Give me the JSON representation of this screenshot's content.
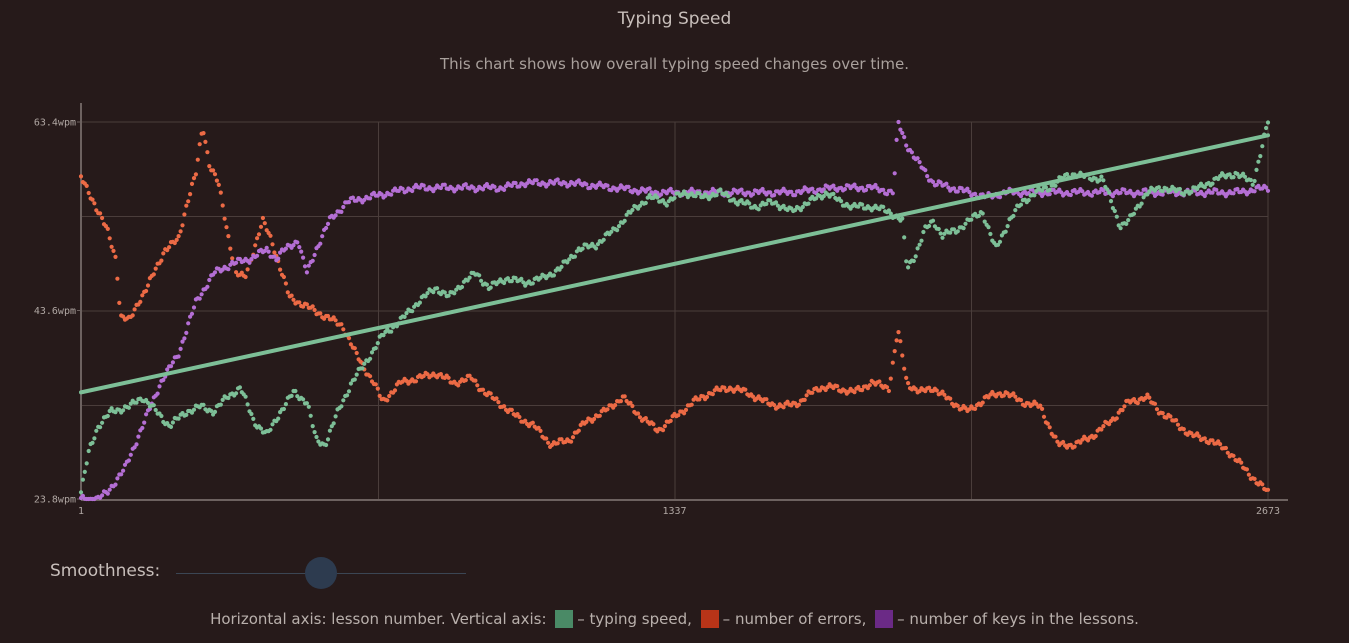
{
  "header": {
    "title": "Typing Speed",
    "subtitle": "This chart shows how overall typing speed changes over time."
  },
  "chart_data": {
    "type": "line",
    "title": "Typing Speed",
    "subtitle": "This chart shows how overall typing speed changes over time.",
    "xlabel": "lesson number",
    "ylabel": "",
    "x_ticks": [
      "1",
      "1337",
      "2673"
    ],
    "y_ticks": [
      "23.8wpm",
      "43.6wpm",
      "63.4wpm"
    ],
    "xlim": [
      1,
      2673
    ],
    "ylim": [
      23.8,
      63.4
    ],
    "grid": true,
    "legend": "bottom",
    "series": [
      {
        "name": "typing speed",
        "color": "#7dbf97",
        "style": "dots",
        "points": [
          [
            1,
            24.5
          ],
          [
            20,
            29.0
          ],
          [
            40,
            31.5
          ],
          [
            70,
            33.0
          ],
          [
            110,
            33.5
          ],
          [
            140,
            34.5
          ],
          [
            170,
            33.0
          ],
          [
            200,
            31.5
          ],
          [
            240,
            33.0
          ],
          [
            270,
            33.5
          ],
          [
            300,
            33.0
          ],
          [
            330,
            34.5
          ],
          [
            360,
            35.5
          ],
          [
            390,
            32.0
          ],
          [
            420,
            30.5
          ],
          [
            450,
            33.0
          ],
          [
            480,
            35.0
          ],
          [
            510,
            34.0
          ],
          [
            530,
            30.0
          ],
          [
            550,
            29.5
          ],
          [
            580,
            33.0
          ],
          [
            610,
            36.0
          ],
          [
            640,
            38.0
          ],
          [
            680,
            41.0
          ],
          [
            720,
            42.5
          ],
          [
            760,
            44.5
          ],
          [
            800,
            46.0
          ],
          [
            830,
            45.0
          ],
          [
            860,
            46.5
          ],
          [
            890,
            47.5
          ],
          [
            920,
            46.0
          ],
          [
            960,
            47.0
          ],
          [
            1000,
            46.5
          ],
          [
            1040,
            47.0
          ],
          [
            1080,
            48.0
          ],
          [
            1120,
            50.0
          ],
          [
            1160,
            50.5
          ],
          [
            1200,
            52.0
          ],
          [
            1240,
            54.0
          ],
          [
            1280,
            55.5
          ],
          [
            1320,
            55.0
          ],
          [
            1360,
            56.0
          ],
          [
            1400,
            55.5
          ],
          [
            1440,
            56.0
          ],
          [
            1480,
            55.0
          ],
          [
            1520,
            54.5
          ],
          [
            1560,
            55.0
          ],
          [
            1600,
            54.0
          ],
          [
            1640,
            55.0
          ],
          [
            1680,
            56.0
          ],
          [
            1710,
            55.0
          ],
          [
            1740,
            54.5
          ],
          [
            1780,
            54.5
          ],
          [
            1820,
            54.0
          ],
          [
            1850,
            53.0
          ],
          [
            1860,
            48.0
          ],
          [
            1880,
            49.5
          ],
          [
            1900,
            52.0
          ],
          [
            1920,
            53.0
          ],
          [
            1940,
            51.5
          ],
          [
            1970,
            52.0
          ],
          [
            2000,
            53.0
          ],
          [
            2030,
            54.0
          ],
          [
            2060,
            50.0
          ],
          [
            2090,
            53.0
          ],
          [
            2120,
            55.0
          ],
          [
            2150,
            56.0
          ],
          [
            2180,
            56.5
          ],
          [
            2210,
            57.5
          ],
          [
            2240,
            58.0
          ],
          [
            2270,
            57.5
          ],
          [
            2300,
            57.5
          ],
          [
            2320,
            55.0
          ],
          [
            2340,
            52.5
          ],
          [
            2360,
            53.0
          ],
          [
            2400,
            56.0
          ],
          [
            2440,
            56.5
          ],
          [
            2480,
            56.0
          ],
          [
            2520,
            56.5
          ],
          [
            2560,
            57.5
          ],
          [
            2600,
            58.0
          ],
          [
            2640,
            57.0
          ],
          [
            2673,
            63.4
          ]
        ]
      },
      {
        "name": "number of errors",
        "color": "#ec6a45",
        "style": "dots",
        "points": [
          [
            1,
            57.5
          ],
          [
            30,
            55.0
          ],
          [
            60,
            52.0
          ],
          [
            80,
            49.0
          ],
          [
            90,
            43.0
          ],
          [
            110,
            42.5
          ],
          [
            130,
            44.5
          ],
          [
            150,
            46.0
          ],
          [
            170,
            48.0
          ],
          [
            190,
            50.0
          ],
          [
            220,
            51.0
          ],
          [
            240,
            55.0
          ],
          [
            260,
            58.0
          ],
          [
            275,
            63.0
          ],
          [
            290,
            59.0
          ],
          [
            310,
            57.0
          ],
          [
            330,
            52.0
          ],
          [
            350,
            47.5
          ],
          [
            370,
            47.0
          ],
          [
            390,
            50.0
          ],
          [
            410,
            53.0
          ],
          [
            430,
            51.0
          ],
          [
            450,
            48.0
          ],
          [
            470,
            45.0
          ],
          [
            510,
            44.0
          ],
          [
            550,
            43.0
          ],
          [
            590,
            42.0
          ],
          [
            620,
            39.0
          ],
          [
            640,
            37.5
          ],
          [
            660,
            36.0
          ],
          [
            680,
            34.0
          ],
          [
            720,
            36.0
          ],
          [
            760,
            36.5
          ],
          [
            800,
            37.0
          ],
          [
            840,
            36.0
          ],
          [
            880,
            36.5
          ],
          [
            910,
            35.0
          ],
          [
            940,
            34.0
          ],
          [
            980,
            32.5
          ],
          [
            1020,
            31.5
          ],
          [
            1060,
            29.5
          ],
          [
            1100,
            30.0
          ],
          [
            1140,
            32.0
          ],
          [
            1180,
            33.0
          ],
          [
            1220,
            34.5
          ],
          [
            1260,
            32.5
          ],
          [
            1300,
            31.0
          ],
          [
            1340,
            32.5
          ],
          [
            1380,
            34.0
          ],
          [
            1420,
            35.0
          ],
          [
            1460,
            35.5
          ],
          [
            1500,
            35.0
          ],
          [
            1540,
            34.0
          ],
          [
            1580,
            33.5
          ],
          [
            1620,
            34.0
          ],
          [
            1660,
            35.5
          ],
          [
            1700,
            35.5
          ],
          [
            1740,
            35.0
          ],
          [
            1780,
            36.0
          ],
          [
            1820,
            35.5
          ],
          [
            1840,
            41.5
          ],
          [
            1860,
            36.0
          ],
          [
            1890,
            35.0
          ],
          [
            1920,
            35.5
          ],
          [
            1960,
            34.0
          ],
          [
            2000,
            33.0
          ],
          [
            2040,
            34.5
          ],
          [
            2080,
            35.0
          ],
          [
            2120,
            34.0
          ],
          [
            2160,
            33.5
          ],
          [
            2200,
            29.5
          ],
          [
            2240,
            29.5
          ],
          [
            2280,
            30.5
          ],
          [
            2320,
            32.0
          ],
          [
            2360,
            34.0
          ],
          [
            2400,
            34.5
          ],
          [
            2430,
            33.0
          ],
          [
            2460,
            32.0
          ],
          [
            2500,
            30.5
          ],
          [
            2540,
            30.0
          ],
          [
            2580,
            29.0
          ],
          [
            2620,
            27.0
          ],
          [
            2650,
            25.5
          ],
          [
            2673,
            24.5
          ]
        ]
      },
      {
        "name": "number of keys in the lessons",
        "color": "#b46ed4",
        "style": "dots",
        "points": [
          [
            1,
            23.8
          ],
          [
            40,
            23.8
          ],
          [
            60,
            24.5
          ],
          [
            100,
            27.0
          ],
          [
            140,
            31.5
          ],
          [
            180,
            36.0
          ],
          [
            220,
            39.0
          ],
          [
            260,
            44.5
          ],
          [
            300,
            47.5
          ],
          [
            340,
            48.5
          ],
          [
            380,
            49.0
          ],
          [
            420,
            50.0
          ],
          [
            440,
            49.0
          ],
          [
            460,
            50.0
          ],
          [
            490,
            51.0
          ],
          [
            500,
            49.0
          ],
          [
            510,
            47.5
          ],
          [
            530,
            50.0
          ],
          [
            560,
            53.0
          ],
          [
            600,
            55.0
          ],
          [
            650,
            55.5
          ],
          [
            700,
            56.0
          ],
          [
            750,
            56.5
          ],
          [
            800,
            56.5
          ],
          [
            850,
            56.5
          ],
          [
            900,
            56.5
          ],
          [
            950,
            56.5
          ],
          [
            1000,
            57.0
          ],
          [
            1100,
            57.0
          ],
          [
            1200,
            56.5
          ],
          [
            1300,
            56.0
          ],
          [
            1400,
            56.0
          ],
          [
            1500,
            56.0
          ],
          [
            1600,
            56.0
          ],
          [
            1700,
            56.5
          ],
          [
            1780,
            56.5
          ],
          [
            1830,
            56.0
          ],
          [
            1840,
            63.4
          ],
          [
            1860,
            61.0
          ],
          [
            1880,
            59.5
          ],
          [
            1920,
            57.0
          ],
          [
            1960,
            56.5
          ],
          [
            2000,
            56.0
          ],
          [
            2040,
            55.5
          ],
          [
            2080,
            56.0
          ],
          [
            2120,
            56.0
          ],
          [
            2200,
            56.0
          ],
          [
            2300,
            56.0
          ],
          [
            2400,
            56.0
          ],
          [
            2500,
            56.0
          ],
          [
            2600,
            56.0
          ],
          [
            2673,
            56.5
          ]
        ]
      },
      {
        "name": "trend",
        "color": "#7dbf97",
        "style": "line",
        "points": [
          [
            1,
            35.0
          ],
          [
            2673,
            62.0
          ]
        ]
      }
    ]
  },
  "controls": {
    "smoothness_label": "Smoothness:",
    "smoothness_value": 0.5
  },
  "legend": {
    "prefix": "Horizontal axis: lesson number. Vertical axis:",
    "items": [
      {
        "label": "– typing speed,",
        "color": "#4a8a66"
      },
      {
        "label": "– number of errors,",
        "color": "#b83418"
      },
      {
        "label": "– number of keys in the lessons.",
        "color": "#6b2a86"
      }
    ]
  }
}
